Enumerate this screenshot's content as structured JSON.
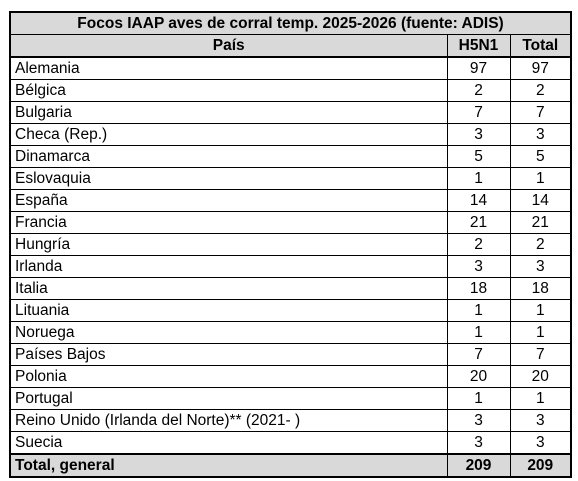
{
  "table": {
    "title": "Focos IAAP aves de corral temp. 2025-2026 (fuente: ADIS)",
    "headers": {
      "pais": "País",
      "h5n1": "H5N1",
      "total": "Total"
    },
    "rows": [
      {
        "pais": "Alemania",
        "h5n1": "97",
        "total": "97"
      },
      {
        "pais": "Bélgica",
        "h5n1": "2",
        "total": "2"
      },
      {
        "pais": "Bulgaria",
        "h5n1": "7",
        "total": "7"
      },
      {
        "pais": "Checa (Rep.)",
        "h5n1": "3",
        "total": "3"
      },
      {
        "pais": "Dinamarca",
        "h5n1": "5",
        "total": "5"
      },
      {
        "pais": "Eslovaquia",
        "h5n1": "1",
        "total": "1"
      },
      {
        "pais": "España",
        "h5n1": "14",
        "total": "14"
      },
      {
        "pais": "Francia",
        "h5n1": "21",
        "total": "21"
      },
      {
        "pais": "Hungría",
        "h5n1": "2",
        "total": "2"
      },
      {
        "pais": "Irlanda",
        "h5n1": "3",
        "total": "3"
      },
      {
        "pais": "Italia",
        "h5n1": "18",
        "total": "18"
      },
      {
        "pais": "Lituania",
        "h5n1": "1",
        "total": "1"
      },
      {
        "pais": "Noruega",
        "h5n1": "1",
        "total": "1"
      },
      {
        "pais": "Países Bajos",
        "h5n1": "7",
        "total": "7"
      },
      {
        "pais": "Polonia",
        "h5n1": "20",
        "total": "20"
      },
      {
        "pais": "Portugal",
        "h5n1": "1",
        "total": "1"
      },
      {
        "pais": "Reino Unido (Irlanda del Norte)** (2021- )",
        "h5n1": "3",
        "total": "3"
      },
      {
        "pais": "Suecia",
        "h5n1": "3",
        "total": "3"
      }
    ],
    "footer": {
      "label": "Total, general",
      "h5n1": "209",
      "total": "209"
    }
  }
}
